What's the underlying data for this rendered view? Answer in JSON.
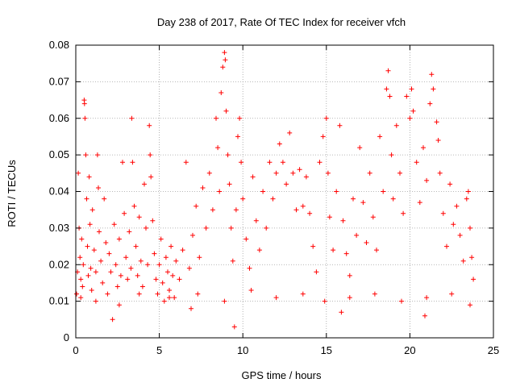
{
  "chart_data": {
    "type": "scatter",
    "title": "Day 238 of 2017, Rate Of TEC Index for receiver vfch",
    "xlabel": "GPS time / hours",
    "ylabel": "ROTI / TECUs",
    "xlim": [
      0,
      25
    ],
    "ylim": [
      0,
      0.08
    ],
    "x_ticks": [
      0,
      5,
      10,
      15,
      20,
      25
    ],
    "x_tick_labels": [
      "0",
      "5",
      "10",
      "15",
      "20",
      "25"
    ],
    "y_ticks": [
      0,
      0.01,
      0.02,
      0.03,
      0.04,
      0.05,
      0.06,
      0.07,
      0.08
    ],
    "y_tick_labels": [
      "0",
      "0.01",
      "0.02",
      "0.03",
      "0.04",
      "0.05",
      "0.06",
      "0.07",
      "0.08"
    ],
    "grid": true,
    "marker": "+",
    "color": "#ff0000",
    "series": [
      {
        "points": [
          [
            0.05,
            0.012
          ],
          [
            0.1,
            0.018
          ],
          [
            0.15,
            0.045
          ],
          [
            0.2,
            0.03
          ],
          [
            0.25,
            0.022
          ],
          [
            0.3,
            0.016
          ],
          [
            0.35,
            0.027
          ],
          [
            0.4,
            0.014
          ],
          [
            0.45,
            0.02
          ],
          [
            0.5,
            0.065
          ],
          [
            0.52,
            0.064
          ],
          [
            0.55,
            0.06
          ],
          [
            0.6,
            0.05
          ],
          [
            0.65,
            0.038
          ],
          [
            0.7,
            0.025
          ],
          [
            0.75,
            0.017
          ],
          [
            0.8,
            0.044
          ],
          [
            0.85,
            0.031
          ],
          [
            0.9,
            0.019
          ],
          [
            0.95,
            0.013
          ],
          [
            1.0,
            0.035
          ],
          [
            1.1,
            0.024
          ],
          [
            1.2,
            0.018
          ],
          [
            1.3,
            0.05
          ],
          [
            1.35,
            0.041
          ],
          [
            1.4,
            0.029
          ],
          [
            1.5,
            0.021
          ],
          [
            1.6,
            0.015
          ],
          [
            1.7,
            0.038
          ],
          [
            1.8,
            0.026
          ],
          [
            1.9,
            0.012
          ],
          [
            2.0,
            0.023
          ],
          [
            2.1,
            0.018
          ],
          [
            2.2,
            0.005
          ],
          [
            2.3,
            0.031
          ],
          [
            2.4,
            0.02
          ],
          [
            2.5,
            0.014
          ],
          [
            2.6,
            0.027
          ],
          [
            2.7,
            0.017
          ],
          [
            2.8,
            0.048
          ],
          [
            2.9,
            0.034
          ],
          [
            3.0,
            0.022
          ],
          [
            3.1,
            0.016
          ],
          [
            3.2,
            0.029
          ],
          [
            3.3,
            0.019
          ],
          [
            3.35,
            0.06
          ],
          [
            3.4,
            0.048
          ],
          [
            3.5,
            0.036
          ],
          [
            3.6,
            0.025
          ],
          [
            3.7,
            0.017
          ],
          [
            3.8,
            0.033
          ],
          [
            3.9,
            0.021
          ],
          [
            4.0,
            0.014
          ],
          [
            4.1,
            0.042
          ],
          [
            4.2,
            0.03
          ],
          [
            4.3,
            0.02
          ],
          [
            4.4,
            0.058
          ],
          [
            4.45,
            0.05
          ],
          [
            4.5,
            0.044
          ],
          [
            4.6,
            0.032
          ],
          [
            4.7,
            0.023
          ],
          [
            4.8,
            0.016
          ],
          [
            4.9,
            0.012
          ],
          [
            5.0,
            0.02
          ],
          [
            5.1,
            0.027
          ],
          [
            5.2,
            0.015
          ],
          [
            5.3,
            0.01
          ],
          [
            5.4,
            0.022
          ],
          [
            5.5,
            0.018
          ],
          [
            5.6,
            0.013
          ],
          [
            5.7,
            0.025
          ],
          [
            5.8,
            0.017
          ],
          [
            5.9,
            0.011
          ],
          [
            6.0,
            0.021
          ],
          [
            6.2,
            0.016
          ],
          [
            6.4,
            0.024
          ],
          [
            6.6,
            0.048
          ],
          [
            6.8,
            0.019
          ],
          [
            7.0,
            0.028
          ],
          [
            7.2,
            0.036
          ],
          [
            7.4,
            0.022
          ],
          [
            7.6,
            0.041
          ],
          [
            7.8,
            0.03
          ],
          [
            8.0,
            0.045
          ],
          [
            8.2,
            0.035
          ],
          [
            8.4,
            0.06
          ],
          [
            8.5,
            0.052
          ],
          [
            8.6,
            0.04
          ],
          [
            8.7,
            0.067
          ],
          [
            8.8,
            0.074
          ],
          [
            8.9,
            0.078
          ],
          [
            8.95,
            0.076
          ],
          [
            9.0,
            0.062
          ],
          [
            9.1,
            0.05
          ],
          [
            9.2,
            0.042
          ],
          [
            9.3,
            0.03
          ],
          [
            9.4,
            0.021
          ],
          [
            9.5,
            0.003
          ],
          [
            9.6,
            0.035
          ],
          [
            9.7,
            0.055
          ],
          [
            9.8,
            0.06
          ],
          [
            9.9,
            0.048
          ],
          [
            10.0,
            0.038
          ],
          [
            10.2,
            0.027
          ],
          [
            10.4,
            0.019
          ],
          [
            10.6,
            0.044
          ],
          [
            10.8,
            0.032
          ],
          [
            11.0,
            0.024
          ],
          [
            11.2,
            0.04
          ],
          [
            11.4,
            0.03
          ],
          [
            11.6,
            0.048
          ],
          [
            11.8,
            0.038
          ],
          [
            12.0,
            0.045
          ],
          [
            12.2,
            0.053
          ],
          [
            12.4,
            0.048
          ],
          [
            12.6,
            0.042
          ],
          [
            12.8,
            0.056
          ],
          [
            13.0,
            0.045
          ],
          [
            13.2,
            0.035
          ],
          [
            13.4,
            0.046
          ],
          [
            13.6,
            0.036
          ],
          [
            13.8,
            0.044
          ],
          [
            14.0,
            0.034
          ],
          [
            14.2,
            0.025
          ],
          [
            14.4,
            0.018
          ],
          [
            14.6,
            0.048
          ],
          [
            14.8,
            0.055
          ],
          [
            15.0,
            0.06
          ],
          [
            15.1,
            0.045
          ],
          [
            15.2,
            0.033
          ],
          [
            15.4,
            0.024
          ],
          [
            15.6,
            0.04
          ],
          [
            15.8,
            0.058
          ],
          [
            16.0,
            0.032
          ],
          [
            16.2,
            0.023
          ],
          [
            16.4,
            0.017
          ],
          [
            16.6,
            0.038
          ],
          [
            16.8,
            0.028
          ],
          [
            17.0,
            0.052
          ],
          [
            17.2,
            0.037
          ],
          [
            17.4,
            0.026
          ],
          [
            17.6,
            0.045
          ],
          [
            17.8,
            0.033
          ],
          [
            18.0,
            0.024
          ],
          [
            18.2,
            0.055
          ],
          [
            18.4,
            0.04
          ],
          [
            18.6,
            0.068
          ],
          [
            18.7,
            0.073
          ],
          [
            18.8,
            0.066
          ],
          [
            18.9,
            0.05
          ],
          [
            19.0,
            0.038
          ],
          [
            19.2,
            0.058
          ],
          [
            19.4,
            0.045
          ],
          [
            19.6,
            0.034
          ],
          [
            19.8,
            0.066
          ],
          [
            20.0,
            0.06
          ],
          [
            20.1,
            0.068
          ],
          [
            20.2,
            0.062
          ],
          [
            20.4,
            0.048
          ],
          [
            20.6,
            0.037
          ],
          [
            20.8,
            0.052
          ],
          [
            21.0,
            0.043
          ],
          [
            21.2,
            0.064
          ],
          [
            21.3,
            0.072
          ],
          [
            21.4,
            0.068
          ],
          [
            21.6,
            0.059
          ],
          [
            21.7,
            0.054
          ],
          [
            21.8,
            0.045
          ],
          [
            22.0,
            0.034
          ],
          [
            22.2,
            0.025
          ],
          [
            22.4,
            0.042
          ],
          [
            22.6,
            0.031
          ],
          [
            22.8,
            0.036
          ],
          [
            23.0,
            0.028
          ],
          [
            23.2,
            0.021
          ],
          [
            23.4,
            0.038
          ],
          [
            23.5,
            0.04
          ],
          [
            23.6,
            0.03
          ],
          [
            23.7,
            0.022
          ],
          [
            23.8,
            0.016
          ],
          [
            0.3,
            0.011
          ],
          [
            1.2,
            0.01
          ],
          [
            2.6,
            0.009
          ],
          [
            3.8,
            0.012
          ],
          [
            5.6,
            0.011
          ],
          [
            7.3,
            0.012
          ],
          [
            8.9,
            0.01
          ],
          [
            10.5,
            0.013
          ],
          [
            12.0,
            0.011
          ],
          [
            13.6,
            0.012
          ],
          [
            14.9,
            0.01
          ],
          [
            16.4,
            0.011
          ],
          [
            17.9,
            0.012
          ],
          [
            19.5,
            0.01
          ],
          [
            21.0,
            0.011
          ],
          [
            22.5,
            0.012
          ],
          [
            23.6,
            0.009
          ],
          [
            6.9,
            0.008
          ],
          [
            15.9,
            0.007
          ],
          [
            20.9,
            0.006
          ]
        ]
      }
    ]
  }
}
